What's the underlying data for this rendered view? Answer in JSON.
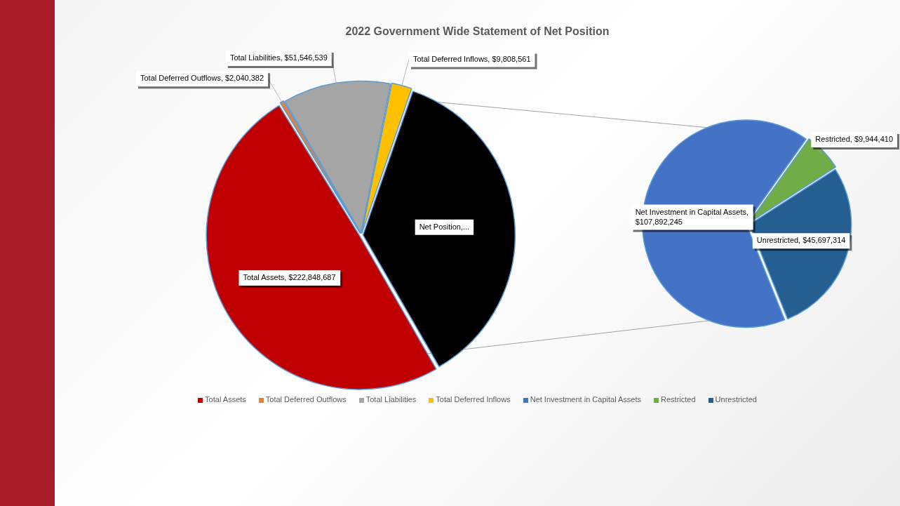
{
  "chart_data": [
    {
      "type": "pie",
      "title": "2022 Government Wide Statement of Net Position",
      "categories": [
        "Total Assets",
        "Total Deferred Outflows",
        "Total Liabilities",
        "Total Deferred Inflows",
        null
      ],
      "values": [
        222848687,
        2040382,
        51546539,
        9808561,
        163533969
      ],
      "colors": [
        "#c00000",
        "#ed7d31",
        "#a5a5a5",
        "#ffc000",
        "#000000"
      ],
      "value_labels": [
        "Total Assets, $222,848,687",
        "Total Deferred Outflows, $2,040,382",
        "Total Liabilities, $51,546,539",
        "Total Deferred Inflows, $9,808,561",
        "Net Position,..."
      ],
      "legend": "bottom"
    },
    {
      "type": "pie",
      "categories": [
        "Net Investment in Capital Assets",
        "Restricted",
        "Unrestricted"
      ],
      "values": [
        107892245,
        9944410,
        45697314
      ],
      "colors": [
        "#4472c4",
        "#70ad47",
        "#255e91"
      ],
      "value_labels": [
        "Net Investment in Capital Assets, $107,892,245",
        "Restricted, $9,944,410",
        "Unrestricted, $45,697,314"
      ],
      "legend": "bottom"
    }
  ]
}
